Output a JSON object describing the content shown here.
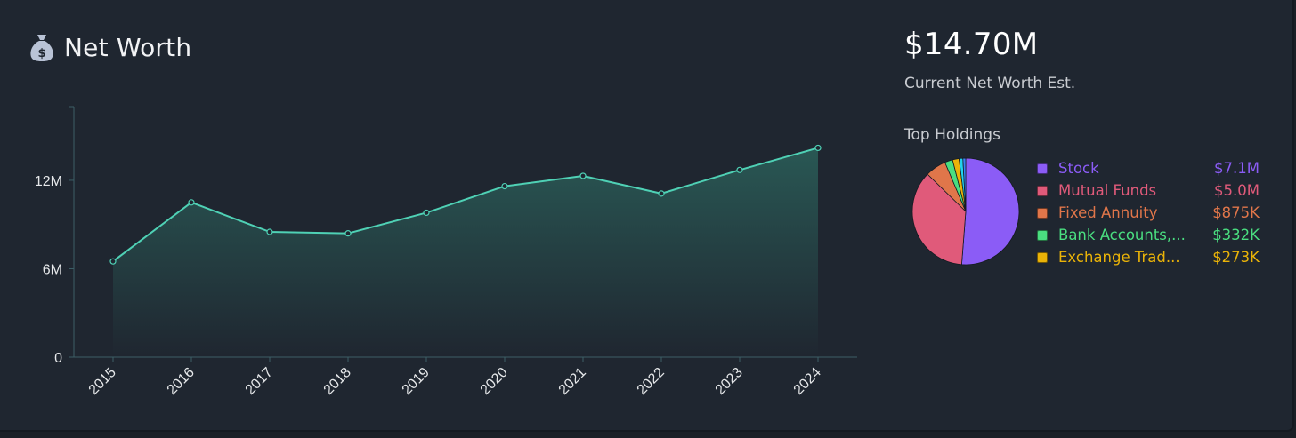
{
  "header": {
    "title": "Net Worth",
    "icon": "money-bag-icon"
  },
  "summary": {
    "value": "$14.70M",
    "caption": "Current Net Worth Est."
  },
  "holdings": {
    "title": "Top Holdings",
    "items": [
      {
        "label": "Stock",
        "value": "$7.1M",
        "amount": 7.1,
        "color": "#8b5cf6"
      },
      {
        "label": "Mutual Funds",
        "value": "$5.0M",
        "amount": 5.0,
        "color": "#e05a7a"
      },
      {
        "label": "Fixed Annuity",
        "value": "$875K",
        "amount": 0.875,
        "color": "#e0764a"
      },
      {
        "label": "Bank Accounts,...",
        "value": "$332K",
        "amount": 0.332,
        "color": "#4ade80"
      },
      {
        "label": "Exchange Trad...",
        "value": "$273K",
        "amount": 0.273,
        "color": "#eab308"
      }
    ],
    "other_slices": [
      {
        "amount": 0.16,
        "color": "#22d3ee"
      },
      {
        "amount": 0.12,
        "color": "#3b82f6"
      }
    ]
  },
  "colors": {
    "line": "#4fd1b5",
    "area_top": "#3aa98f",
    "axis": "#3c5f66",
    "tick_text": "#e6e8ea"
  },
  "chart_data": {
    "type": "area",
    "title": "Net Worth",
    "x": [
      "2015",
      "2016",
      "2017",
      "2018",
      "2019",
      "2020",
      "2021",
      "2022",
      "2023",
      "2024"
    ],
    "series": [
      {
        "values": [
          6.5,
          10.5,
          8.5,
          8.4,
          9.8,
          11.6,
          12.3,
          11.1,
          12.7,
          14.2
        ]
      }
    ],
    "yticks": [
      {
        "value": 0,
        "label": "0"
      },
      {
        "value": 6,
        "label": "6M"
      },
      {
        "value": 12,
        "label": "12M"
      }
    ],
    "ylim": [
      0,
      17
    ],
    "xlabel": "",
    "ylabel": "",
    "grid": false
  }
}
